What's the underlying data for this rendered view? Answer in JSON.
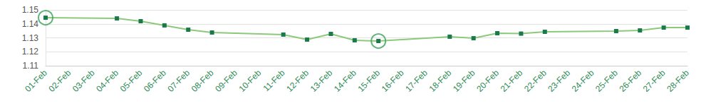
{
  "chart_data": {
    "type": "line",
    "categories": [
      "01-Feb",
      "02-Feb",
      "03-Feb",
      "04-Feb",
      "05-Feb",
      "06-Feb",
      "07-Feb",
      "08-Feb",
      "09-Feb",
      "10-Feb",
      "11-Feb",
      "12-Feb",
      "13-Feb",
      "14-Feb",
      "15-Feb",
      "16-Feb",
      "17-Feb",
      "18-Feb",
      "19-Feb",
      "20-Feb",
      "21-Feb",
      "22-Feb",
      "23-Feb",
      "24-Feb",
      "25-Feb",
      "26-Feb",
      "27-Feb",
      "28-Feb"
    ],
    "values": [
      1.1444,
      null,
      null,
      1.1439,
      1.1419,
      1.1389,
      1.1358,
      1.1338,
      null,
      null,
      1.1323,
      1.1287,
      1.1328,
      1.1282,
      1.1277,
      null,
      null,
      1.1308,
      1.1297,
      1.1333,
      1.133,
      1.1343,
      null,
      null,
      1.1348,
      1.1353,
      1.1373,
      1.1373
    ],
    "color": "#8cc97a",
    "marker": "square",
    "ylim": [
      1.11,
      1.15
    ],
    "yticks": [
      1.11,
      1.12,
      1.13,
      1.14,
      1.15
    ],
    "grid": true
  }
}
